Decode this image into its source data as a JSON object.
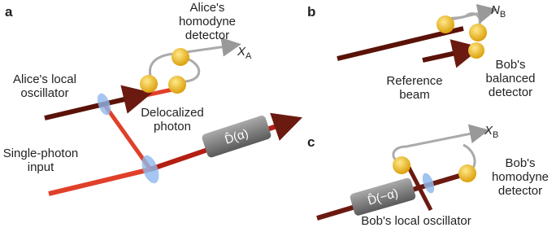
{
  "panels": {
    "a": {
      "label": "a",
      "detector": [
        "Alice's",
        "homodyne",
        "detector"
      ],
      "output": {
        "symbol": "X",
        "subscript": "A"
      },
      "oscillator": [
        "Alice's local",
        "oscillator"
      ],
      "photon": [
        "Delocalized",
        "photon"
      ],
      "input": [
        "Single-photon",
        "input"
      ],
      "operator": "D̂(α)"
    },
    "b": {
      "label": "b",
      "output": {
        "symbol": "N",
        "subscript": "B"
      },
      "reference": [
        "Reference",
        "beam"
      ],
      "detector": [
        "Bob's",
        "balanced",
        "detector"
      ]
    },
    "c": {
      "label": "c",
      "output": {
        "symbol": "X",
        "subscript": "B"
      },
      "operator": "D̂(−α)",
      "detector": [
        "Bob's",
        "homodyne",
        "detector"
      ],
      "oscillator": "Bob's local oscillator"
    }
  }
}
